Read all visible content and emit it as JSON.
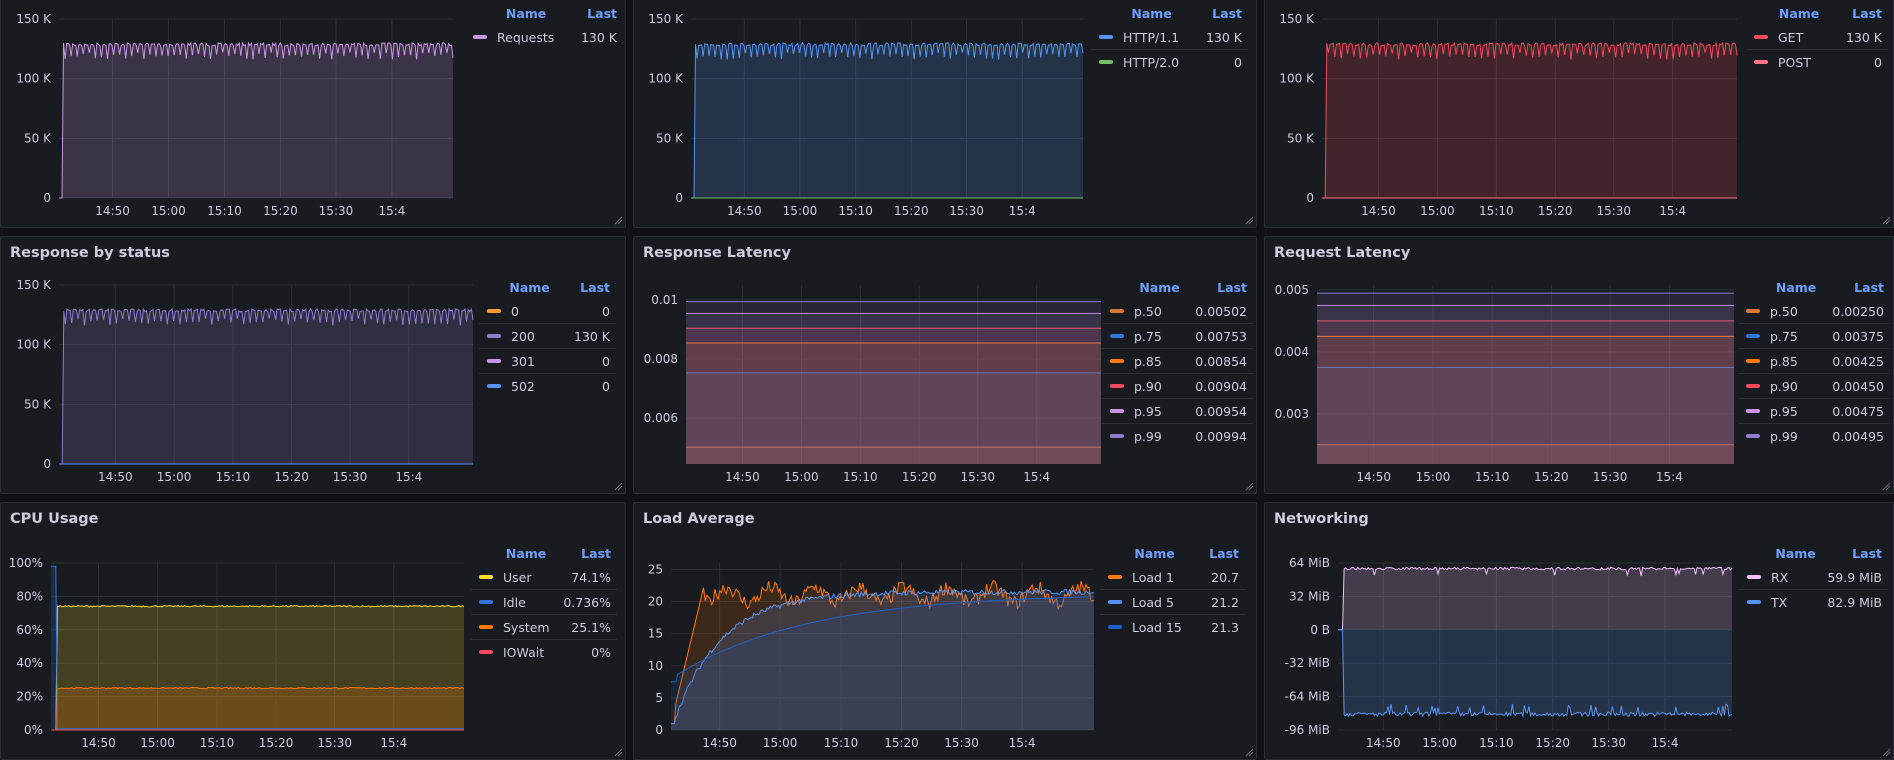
{
  "panels": [
    {
      "id": "requests",
      "title": "",
      "legend_header": {
        "name": "Name",
        "last": "Last"
      },
      "legend": [
        {
          "name": "Requests",
          "last": "130 K",
          "color": "#ca95e5"
        }
      ]
    },
    {
      "id": "http-version",
      "title": "",
      "legend_header": {
        "name": "Name",
        "last": "Last"
      },
      "legend": [
        {
          "name": "HTTP/1.1",
          "last": "130 K",
          "color": "#5794f2"
        },
        {
          "name": "HTTP/2.0",
          "last": "0",
          "color": "#73bf69"
        }
      ]
    },
    {
      "id": "http-method",
      "title": "",
      "legend_header": {
        "name": "Name",
        "last": "Last"
      },
      "legend": [
        {
          "name": "GET",
          "last": "130 K",
          "color": "#f2495c"
        },
        {
          "name": "POST",
          "last": "0",
          "color": "#ff7383"
        }
      ]
    },
    {
      "id": "response-by-status",
      "title": "Response by status",
      "legend_header": {
        "name": "Name",
        "last": "Last"
      },
      "legend": [
        {
          "name": "0",
          "last": "0",
          "color": "#ff9830"
        },
        {
          "name": "200",
          "last": "130 K",
          "color": "#8f7bcf"
        },
        {
          "name": "301",
          "last": "0",
          "color": "#ca95e5"
        },
        {
          "name": "502",
          "last": "0",
          "color": "#5794f2"
        }
      ]
    },
    {
      "id": "response-latency",
      "title": "Response Latency",
      "legend_header": {
        "name": "Name",
        "last": "Last"
      },
      "legend": [
        {
          "name": "p.50",
          "last": "0.00502",
          "color": "#e0752d"
        },
        {
          "name": "p.75",
          "last": "0.00753",
          "color": "#3274d9"
        },
        {
          "name": "p.85",
          "last": "0.00854",
          "color": "#ff780a"
        },
        {
          "name": "p.90",
          "last": "0.00904",
          "color": "#f2495c"
        },
        {
          "name": "p.95",
          "last": "0.00954",
          "color": "#ca95e5"
        },
        {
          "name": "p.99",
          "last": "0.00994",
          "color": "#8f7bcf"
        }
      ]
    },
    {
      "id": "request-latency",
      "title": "Request Latency",
      "legend_header": {
        "name": "Name",
        "last": "Last"
      },
      "legend": [
        {
          "name": "p.50",
          "last": "0.00250",
          "color": "#e0752d"
        },
        {
          "name": "p.75",
          "last": "0.00375",
          "color": "#3274d9"
        },
        {
          "name": "p.85",
          "last": "0.00425",
          "color": "#ff780a"
        },
        {
          "name": "p.90",
          "last": "0.00450",
          "color": "#f2495c"
        },
        {
          "name": "p.95",
          "last": "0.00475",
          "color": "#ca95e5"
        },
        {
          "name": "p.99",
          "last": "0.00495",
          "color": "#8f7bcf"
        }
      ]
    },
    {
      "id": "cpu-usage",
      "title": "CPU Usage",
      "legend_header": {
        "name": "Name",
        "last": "Last"
      },
      "legend": [
        {
          "name": "User",
          "last": "74.1%",
          "color": "#fade2a"
        },
        {
          "name": "Idle",
          "last": "0.736%",
          "color": "#3274d9"
        },
        {
          "name": "System",
          "last": "25.1%",
          "color": "#ff780a"
        },
        {
          "name": "IOWait",
          "last": "0%",
          "color": "#f2495c"
        }
      ]
    },
    {
      "id": "load-average",
      "title": "Load Average",
      "legend_header": {
        "name": "Name",
        "last": "Last"
      },
      "legend": [
        {
          "name": "Load 1",
          "last": "20.7",
          "color": "#ff780a"
        },
        {
          "name": "Load 5",
          "last": "21.2",
          "color": "#5794f2"
        },
        {
          "name": "Load 15",
          "last": "21.3",
          "color": "#1f60c4"
        }
      ]
    },
    {
      "id": "networking",
      "title": "Networking",
      "legend_header": {
        "name": "Name",
        "last": "Last"
      },
      "legend": [
        {
          "name": "RX",
          "last": "59.9 MiB",
          "color": "#f4c2ff"
        },
        {
          "name": "TX",
          "last": "82.9 MiB",
          "color": "#5794f2"
        }
      ]
    }
  ],
  "chart_data": [
    {
      "type": "area",
      "panel": "requests",
      "x_ticks": [
        "14:50",
        "15:00",
        "15:10",
        "15:20",
        "15:30",
        "15:4"
      ],
      "y_ticks": [
        "0",
        "50 K",
        "100 K",
        "150 K"
      ],
      "ylim": [
        0,
        150000
      ],
      "series": [
        {
          "name": "Requests",
          "values": [
            130000
          ]
        }
      ]
    },
    {
      "type": "area",
      "panel": "http-version",
      "x_ticks": [
        "14:50",
        "15:00",
        "15:10",
        "15:20",
        "15:30",
        "15:4"
      ],
      "y_ticks": [
        "0",
        "50 K",
        "100 K",
        "150 K"
      ],
      "ylim": [
        0,
        150000
      ],
      "series": [
        {
          "name": "HTTP/1.1",
          "values": [
            130000
          ]
        },
        {
          "name": "HTTP/2.0",
          "values": [
            0
          ]
        }
      ]
    },
    {
      "type": "area",
      "panel": "http-method",
      "x_ticks": [
        "14:50",
        "15:00",
        "15:10",
        "15:20",
        "15:30",
        "15:4"
      ],
      "y_ticks": [
        "0",
        "50 K",
        "100 K",
        "150 K"
      ],
      "ylim": [
        0,
        150000
      ],
      "series": [
        {
          "name": "GET",
          "values": [
            130000
          ]
        },
        {
          "name": "POST",
          "values": [
            0
          ]
        }
      ]
    },
    {
      "type": "area",
      "panel": "response-by-status",
      "x_ticks": [
        "14:50",
        "15:00",
        "15:10",
        "15:20",
        "15:30",
        "15:4"
      ],
      "y_ticks": [
        "0",
        "50 K",
        "100 K",
        "150 K"
      ],
      "ylim": [
        0,
        150000
      ],
      "series": [
        {
          "name": "200",
          "values": [
            130000
          ]
        },
        {
          "name": "0",
          "values": [
            0
          ]
        },
        {
          "name": "301",
          "values": [
            0
          ]
        },
        {
          "name": "502",
          "values": [
            0
          ]
        }
      ]
    },
    {
      "type": "area",
      "panel": "response-latency",
      "x_ticks": [
        "14:50",
        "15:00",
        "15:10",
        "15:20",
        "15:30",
        "15:4"
      ],
      "y_ticks": [
        "0.006",
        "0.008",
        "0.01"
      ],
      "ylim": [
        0.00445,
        0.0105
      ],
      "series": [
        {
          "name": "p.50",
          "values": [
            0.00502
          ]
        },
        {
          "name": "p.75",
          "values": [
            0.00753
          ]
        },
        {
          "name": "p.85",
          "values": [
            0.00854
          ]
        },
        {
          "name": "p.90",
          "values": [
            0.00904
          ]
        },
        {
          "name": "p.95",
          "values": [
            0.00954
          ]
        },
        {
          "name": "p.99",
          "values": [
            0.00994
          ]
        }
      ]
    },
    {
      "type": "area",
      "panel": "request-latency",
      "x_ticks": [
        "14:50",
        "15:00",
        "15:10",
        "15:20",
        "15:30",
        "15:4"
      ],
      "y_ticks": [
        "0.003",
        "0.004",
        "0.005"
      ],
      "ylim": [
        0.00219,
        0.00508
      ],
      "series": [
        {
          "name": "p.50",
          "values": [
            0.0025
          ]
        },
        {
          "name": "p.75",
          "values": [
            0.00375
          ]
        },
        {
          "name": "p.85",
          "values": [
            0.00425
          ]
        },
        {
          "name": "p.90",
          "values": [
            0.0045
          ]
        },
        {
          "name": "p.95",
          "values": [
            0.00475
          ]
        },
        {
          "name": "p.99",
          "values": [
            0.00495
          ]
        }
      ]
    },
    {
      "type": "area",
      "panel": "cpu-usage",
      "x_ticks": [
        "14:50",
        "15:00",
        "15:10",
        "15:20",
        "15:30",
        "15:4"
      ],
      "y_ticks": [
        "0%",
        "20%",
        "40%",
        "60%",
        "80%",
        "100%"
      ],
      "ylim": [
        0,
        100
      ],
      "series": [
        {
          "name": "User",
          "values": [
            74.1
          ]
        },
        {
          "name": "System",
          "values": [
            25.1
          ]
        },
        {
          "name": "Idle",
          "values": [
            0.736
          ]
        },
        {
          "name": "IOWait",
          "values": [
            0
          ]
        }
      ]
    },
    {
      "type": "area",
      "panel": "load-average",
      "x_ticks": [
        "14:50",
        "15:00",
        "15:10",
        "15:20",
        "15:30",
        "15:4"
      ],
      "y_ticks": [
        "0",
        "5",
        "10",
        "15",
        "20",
        "25"
      ],
      "ylim": [
        0,
        26
      ],
      "series": [
        {
          "name": "Load 1",
          "values": [
            1,
            23,
            21,
            22,
            21.5,
            20.7
          ]
        },
        {
          "name": "Load 5",
          "values": [
            0.5,
            17,
            20,
            21.5,
            21.8,
            21.2
          ]
        },
        {
          "name": "Load 15",
          "values": [
            8,
            13,
            16.5,
            19,
            20.5,
            21.3
          ]
        }
      ]
    },
    {
      "type": "area",
      "panel": "networking",
      "x_ticks": [
        "14:50",
        "15:00",
        "15:10",
        "15:20",
        "15:30",
        "15:4"
      ],
      "y_ticks": [
        "-96 MiB",
        "-64 MiB",
        "-32 MiB",
        "0 B",
        "32 MiB",
        "64 MiB"
      ],
      "ylim": [
        -96,
        64
      ],
      "series": [
        {
          "name": "RX",
          "values": [
            59.9
          ]
        },
        {
          "name": "TX",
          "values": [
            -82.9
          ]
        }
      ]
    }
  ]
}
